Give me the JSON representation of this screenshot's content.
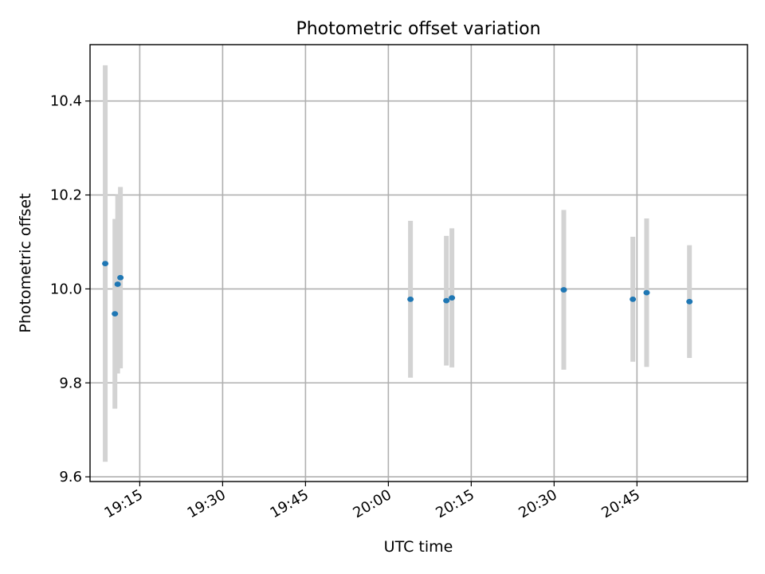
{
  "chart_data": {
    "type": "scatter",
    "title": "Photometric offset variation",
    "xlabel": "UTC time",
    "ylabel": "Photometric offset",
    "xlim": [
      "19:06:00",
      "21:05:00"
    ],
    "ylim": [
      9.59,
      10.52
    ],
    "xticks": [
      "19:15",
      "19:30",
      "19:45",
      "20:00",
      "20:15",
      "20:30",
      "20:45"
    ],
    "yticks": [
      9.6,
      9.8,
      10.0,
      10.2,
      10.4
    ],
    "ytick_labels": [
      "9.6",
      "9.8",
      "10.0",
      "10.2",
      "10.4"
    ],
    "grid": true,
    "points": [
      {
        "time": "19:08:45",
        "offset": 10.054,
        "err": 0.422
      },
      {
        "time": "19:10:30",
        "offset": 9.947,
        "err": 0.202
      },
      {
        "time": "19:11:00",
        "offset": 10.01,
        "err": 0.19
      },
      {
        "time": "19:11:30",
        "offset": 10.024,
        "err": 0.193
      },
      {
        "time": "20:04:00",
        "offset": 9.978,
        "err": 0.167
      },
      {
        "time": "20:10:30",
        "offset": 9.975,
        "err": 0.138
      },
      {
        "time": "20:11:30",
        "offset": 9.981,
        "err": 0.148
      },
      {
        "time": "20:31:45",
        "offset": 9.998,
        "err": 0.17
      },
      {
        "time": "20:44:15",
        "offset": 9.978,
        "err": 0.133
      },
      {
        "time": "20:46:45",
        "offset": 9.992,
        "err": 0.158
      },
      {
        "time": "20:54:30",
        "offset": 9.973,
        "err": 0.12
      }
    ],
    "colors": {
      "points": "#1f77b4",
      "errorbars": "#d3d3d3",
      "grid": "#b0b0b0"
    }
  }
}
